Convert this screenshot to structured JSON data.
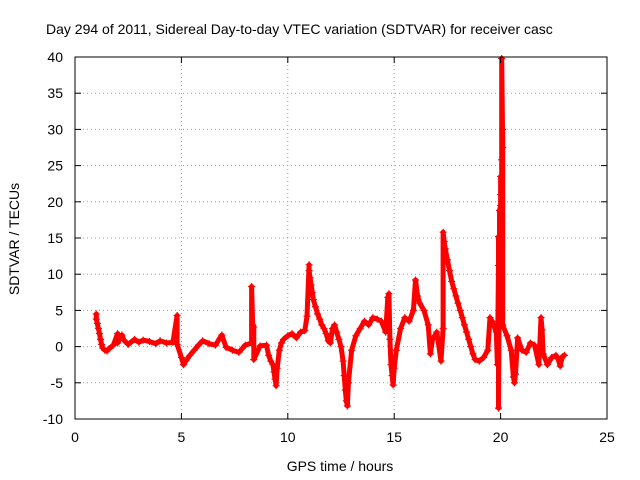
{
  "chart_data": {
    "type": "scatter",
    "title": "Day 294 of 2011, Sidereal Day-to-day VTEC variation (SDTVAR) for receiver casc",
    "xlabel": "GPS time / hours",
    "ylabel": "SDTVAR / TECUs",
    "xlim": [
      0,
      25
    ],
    "ylim": [
      -10,
      40
    ],
    "xticks": [
      0,
      5,
      10,
      15,
      20,
      25
    ],
    "yticks": [
      -10,
      -5,
      0,
      5,
      10,
      15,
      20,
      25,
      30,
      35,
      40
    ],
    "grid": true,
    "marker": "+",
    "color": "#ff0000",
    "series": [
      {
        "name": "SDTVAR",
        "points": [
          [
            1.0,
            4.5
          ],
          [
            1.0,
            3.8
          ],
          [
            1.05,
            3.2
          ],
          [
            1.1,
            2.5
          ],
          [
            1.15,
            1.8
          ],
          [
            1.2,
            1.0
          ],
          [
            1.25,
            0.3
          ],
          [
            1.3,
            -0.2
          ],
          [
            1.4,
            -0.5
          ],
          [
            1.5,
            -0.6
          ],
          [
            1.6,
            -0.3
          ],
          [
            1.8,
            0.2
          ],
          [
            2.0,
            1.8
          ],
          [
            2.0,
            0.5
          ],
          [
            2.2,
            1.6
          ],
          [
            2.3,
            0.9
          ],
          [
            2.5,
            0.3
          ],
          [
            2.8,
            1.0
          ],
          [
            3.0,
            0.6
          ],
          [
            3.2,
            0.9
          ],
          [
            3.5,
            0.7
          ],
          [
            3.8,
            0.4
          ],
          [
            4.0,
            0.8
          ],
          [
            4.3,
            0.5
          ],
          [
            4.6,
            0.6
          ],
          [
            4.8,
            4.3
          ],
          [
            4.8,
            0.3
          ],
          [
            5.0,
            -1.5
          ],
          [
            5.1,
            -2.5
          ],
          [
            5.2,
            -2.0
          ],
          [
            5.4,
            -1.2
          ],
          [
            5.6,
            -0.5
          ],
          [
            5.8,
            0.2
          ],
          [
            6.0,
            0.8
          ],
          [
            6.3,
            0.4
          ],
          [
            6.6,
            0.2
          ],
          [
            6.9,
            1.6
          ],
          [
            7.1,
            -0.1
          ],
          [
            7.4,
            -0.5
          ],
          [
            7.7,
            -0.8
          ],
          [
            8.0,
            0.2
          ],
          [
            8.3,
            0.5
          ],
          [
            8.3,
            8.3
          ],
          [
            8.35,
            3.0
          ],
          [
            8.4,
            2.7
          ],
          [
            8.4,
            -1.8
          ],
          [
            8.7,
            0.1
          ],
          [
            9.0,
            0.2
          ],
          [
            9.1,
            -1.2
          ],
          [
            9.2,
            -2.0
          ],
          [
            9.3,
            -2.5
          ],
          [
            9.35,
            -3.5
          ],
          [
            9.4,
            -4.5
          ],
          [
            9.45,
            -5.4
          ],
          [
            9.5,
            -3.0
          ],
          [
            9.6,
            -0.5
          ],
          [
            9.7,
            0.5
          ],
          [
            9.8,
            1.0
          ],
          [
            10.0,
            1.5
          ],
          [
            10.2,
            1.8
          ],
          [
            10.4,
            1.2
          ],
          [
            10.6,
            2.0
          ],
          [
            10.8,
            2.2
          ],
          [
            10.9,
            4.2
          ],
          [
            11.0,
            11.3
          ],
          [
            11.0,
            10.5
          ],
          [
            11.05,
            9.5
          ],
          [
            11.1,
            8.5
          ],
          [
            11.15,
            7.5
          ],
          [
            11.2,
            6.5
          ],
          [
            11.3,
            5.5
          ],
          [
            11.4,
            4.5
          ],
          [
            11.5,
            3.8
          ],
          [
            11.6,
            3.0
          ],
          [
            11.7,
            2.5
          ],
          [
            11.8,
            1.8
          ],
          [
            11.9,
            0.8
          ],
          [
            12.0,
            0.5
          ],
          [
            12.1,
            2.5
          ],
          [
            12.2,
            3.0
          ],
          [
            12.3,
            2.0
          ],
          [
            12.4,
            1.0
          ],
          [
            12.5,
            0.0
          ],
          [
            12.6,
            -2.0
          ],
          [
            12.65,
            -4.0
          ],
          [
            12.7,
            -6.0
          ],
          [
            12.75,
            -7.5
          ],
          [
            12.8,
            -8.2
          ],
          [
            12.85,
            -5.0
          ],
          [
            13.0,
            -0.5
          ],
          [
            13.2,
            1.5
          ],
          [
            13.4,
            2.5
          ],
          [
            13.6,
            3.5
          ],
          [
            13.8,
            3.0
          ],
          [
            14.0,
            4.0
          ],
          [
            14.2,
            3.8
          ],
          [
            14.4,
            3.5
          ],
          [
            14.6,
            2.0
          ],
          [
            14.7,
            6.8
          ],
          [
            14.75,
            7.3
          ],
          [
            14.8,
            1.0
          ],
          [
            14.85,
            -2.5
          ],
          [
            14.9,
            -4.0
          ],
          [
            14.95,
            -5.3
          ],
          [
            15.0,
            -3.0
          ],
          [
            15.1,
            -0.5
          ],
          [
            15.3,
            2.5
          ],
          [
            15.5,
            4.0
          ],
          [
            15.7,
            3.5
          ],
          [
            15.9,
            5.0
          ],
          [
            16.0,
            9.2
          ],
          [
            16.1,
            7.0
          ],
          [
            16.2,
            6.0
          ],
          [
            16.4,
            5.0
          ],
          [
            16.6,
            3.0
          ],
          [
            16.7,
            -1.0
          ],
          [
            16.8,
            1.0
          ],
          [
            17.0,
            2.0
          ],
          [
            17.2,
            -2.0
          ],
          [
            17.3,
            2.5
          ],
          [
            17.3,
            15.8
          ],
          [
            17.35,
            14.5
          ],
          [
            17.4,
            13.5
          ],
          [
            17.5,
            12.0
          ],
          [
            17.6,
            10.5
          ],
          [
            17.7,
            9.0
          ],
          [
            17.8,
            8.0
          ],
          [
            17.9,
            7.0
          ],
          [
            18.0,
            6.0
          ],
          [
            18.1,
            5.0
          ],
          [
            18.2,
            4.0
          ],
          [
            18.3,
            3.0
          ],
          [
            18.4,
            2.0
          ],
          [
            18.5,
            1.0
          ],
          [
            18.6,
            0.0
          ],
          [
            18.7,
            -1.0
          ],
          [
            18.8,
            -1.8
          ],
          [
            19.0,
            -2.0
          ],
          [
            19.2,
            -1.5
          ],
          [
            19.4,
            -0.5
          ],
          [
            19.5,
            4.0
          ],
          [
            19.6,
            3.5
          ],
          [
            19.8,
            2.0
          ],
          [
            19.85,
            -2.5
          ],
          [
            19.9,
            11.2
          ],
          [
            19.9,
            15.2
          ],
          [
            19.9,
            -8.5
          ],
          [
            19.95,
            13.0
          ],
          [
            19.95,
            18.8
          ],
          [
            20.0,
            19.5
          ],
          [
            20.0,
            21.0
          ],
          [
            20.0,
            23.5
          ],
          [
            20.05,
            22.8
          ],
          [
            20.05,
            25.8
          ],
          [
            20.1,
            27.5
          ],
          [
            20.1,
            30.0
          ],
          [
            20.05,
            39.8
          ],
          [
            20.1,
            3.0
          ],
          [
            20.3,
            1.5
          ],
          [
            20.5,
            -0.5
          ],
          [
            20.6,
            -4.2
          ],
          [
            20.65,
            -5.0
          ],
          [
            20.7,
            -3.8
          ],
          [
            20.8,
            1.2
          ],
          [
            21.0,
            -0.5
          ],
          [
            21.2,
            -0.8
          ],
          [
            21.4,
            0.5
          ],
          [
            21.6,
            0.2
          ],
          [
            21.8,
            -2.5
          ],
          [
            21.9,
            4.0
          ],
          [
            21.95,
            2.3
          ],
          [
            22.0,
            -1.0
          ],
          [
            22.2,
            -2.5
          ],
          [
            22.4,
            -1.5
          ],
          [
            22.6,
            -1.2
          ],
          [
            22.7,
            -1.7
          ],
          [
            22.8,
            -2.7
          ],
          [
            22.9,
            -1.4
          ],
          [
            23.0,
            -1.2
          ]
        ]
      }
    ]
  }
}
